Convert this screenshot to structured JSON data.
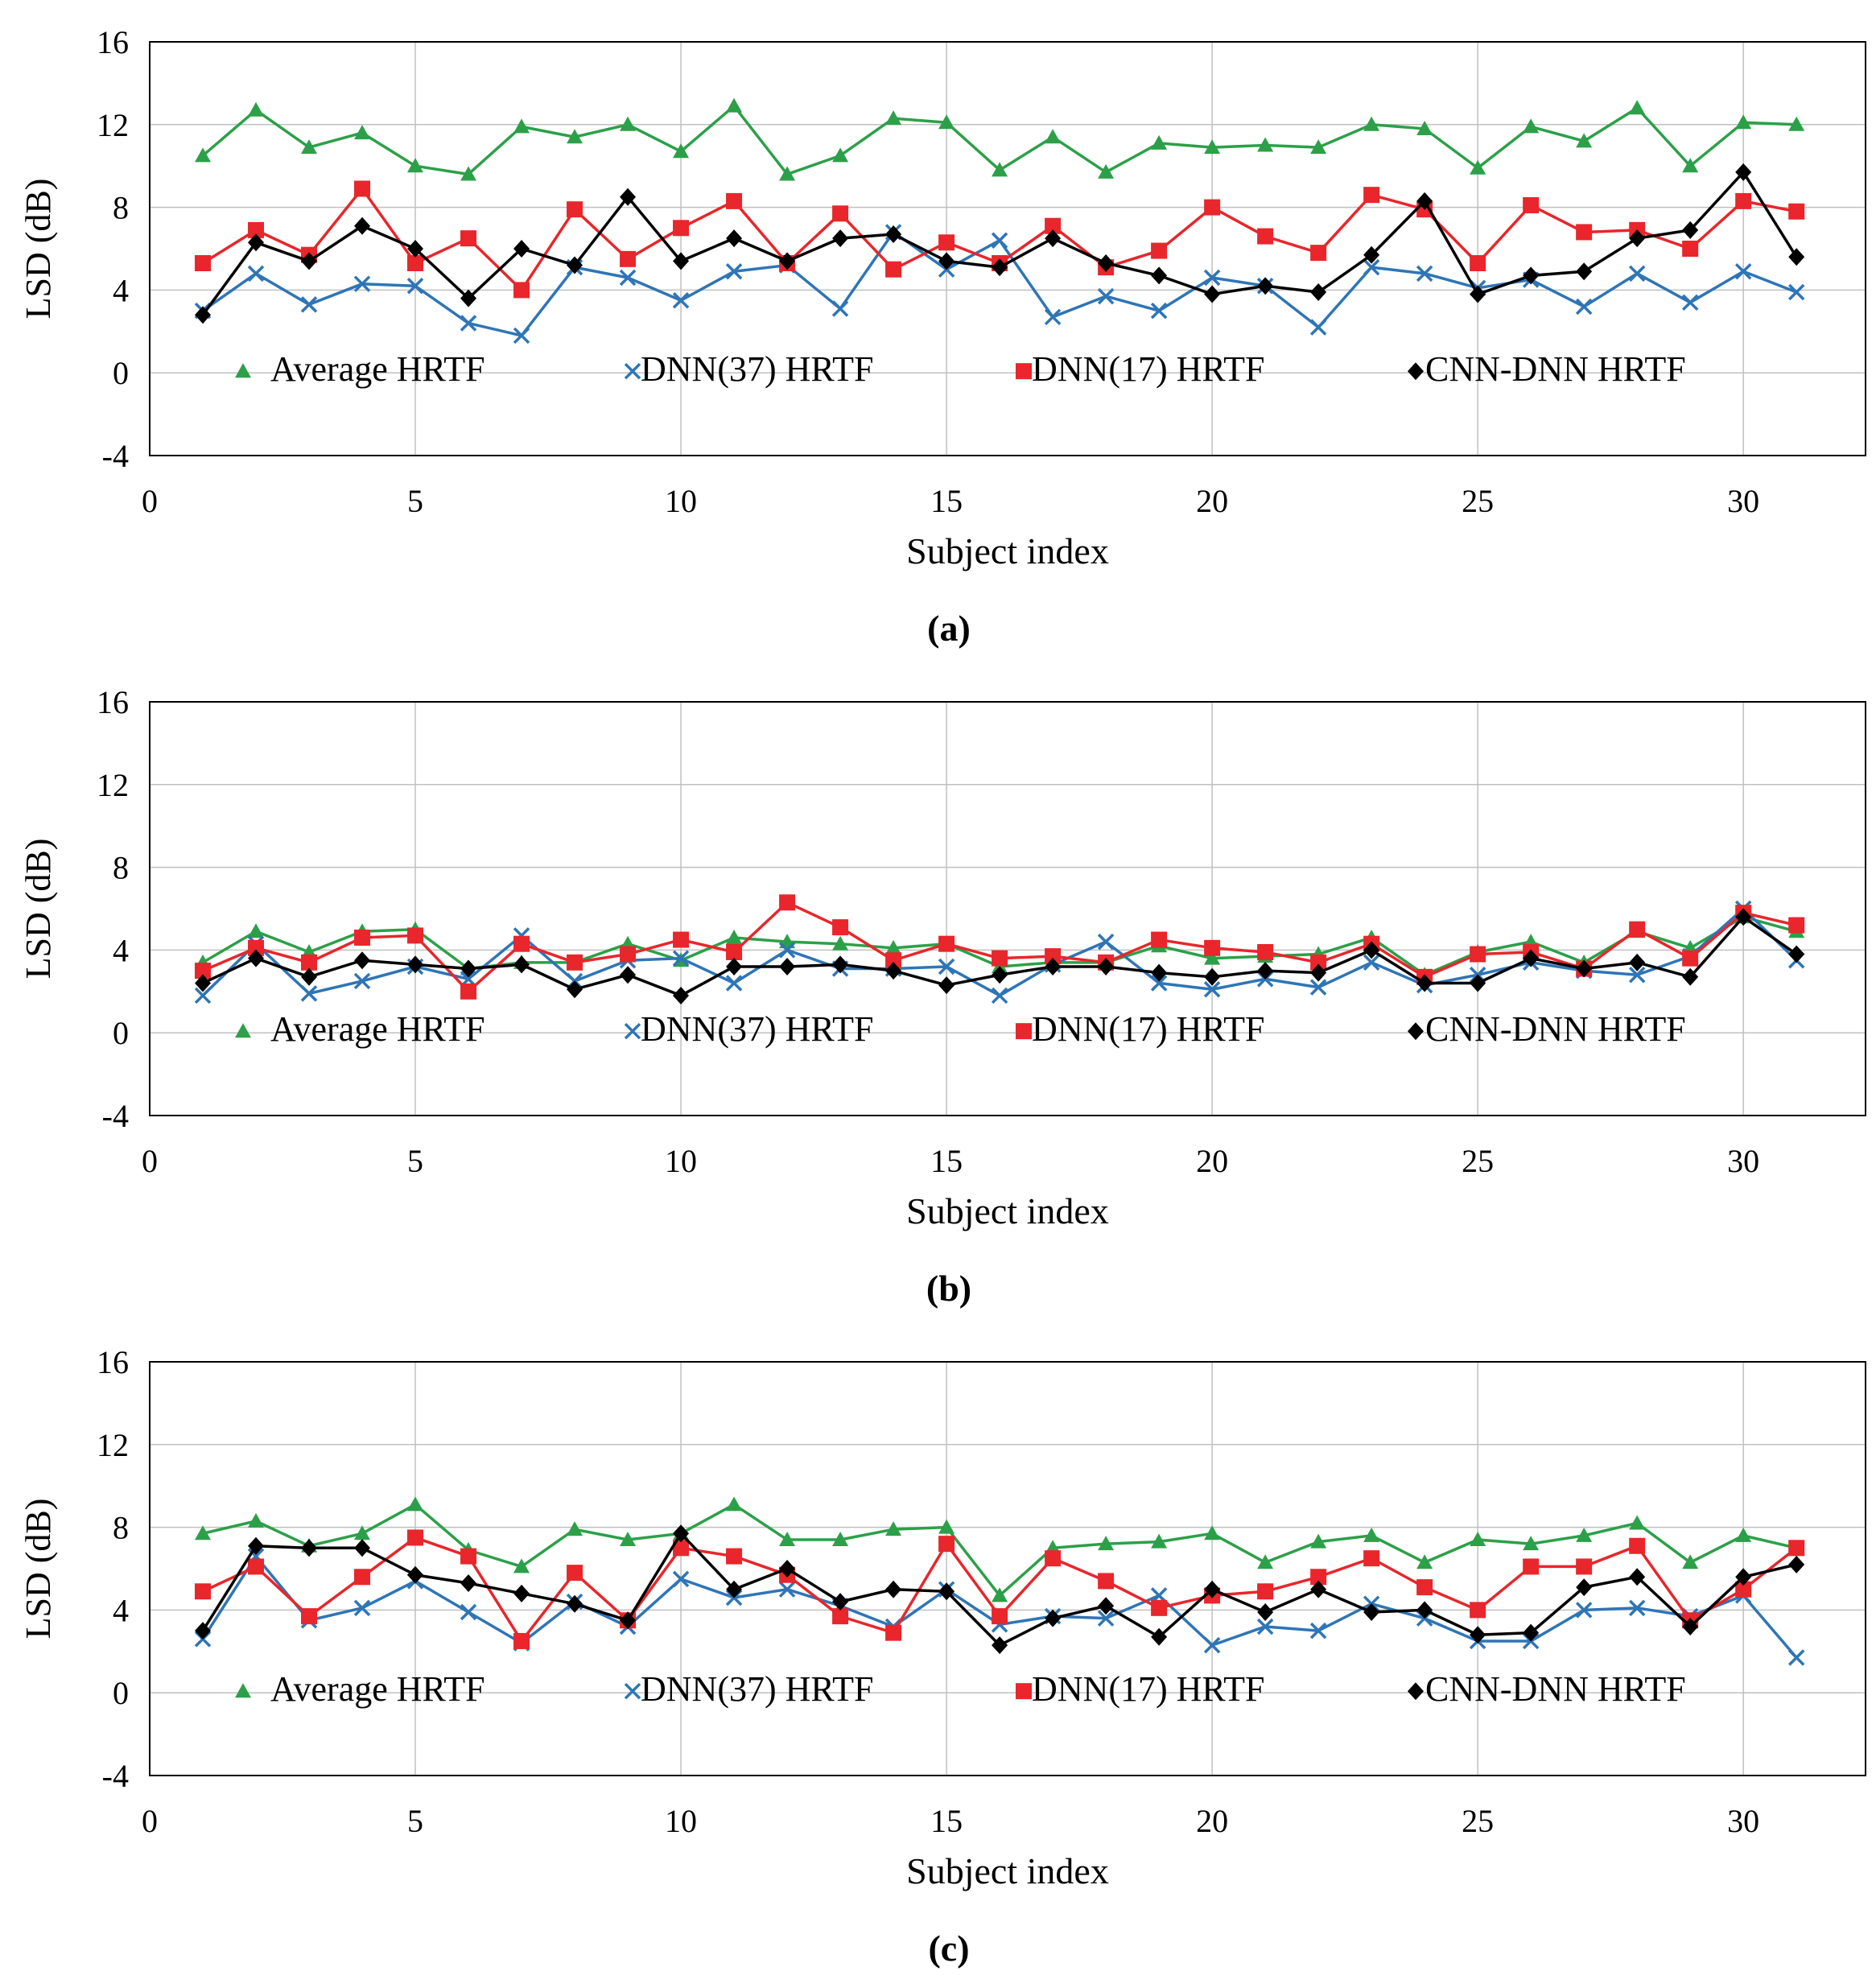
{
  "colors": {
    "average": "#2ca048",
    "dnn37": "#2e75b6",
    "dnn17": "#e8262b",
    "cnndnn": "#000000",
    "grid": "#c0c0c0",
    "frame": "#000000"
  },
  "chart_data": [
    {
      "type": "line",
      "panel_label": "(a)",
      "xlabel": "Subject index",
      "ylabel": "LSD (dB)",
      "xlim": [
        0,
        32.3
      ],
      "ylim": [
        -4,
        16
      ],
      "xticks": [
        0,
        5,
        10,
        15,
        20,
        25,
        30
      ],
      "yticks": [
        -4,
        0,
        4,
        8,
        12,
        16
      ],
      "grid": true,
      "legend_position": "bottom-inside",
      "x": [
        1,
        2,
        3,
        4,
        5,
        6,
        7,
        8,
        9,
        10,
        11,
        12,
        13,
        14,
        15,
        16,
        17,
        18,
        19,
        20,
        21,
        22,
        23,
        24,
        25,
        26,
        27,
        28,
        29,
        30,
        31
      ],
      "series": [
        {
          "key": "average",
          "name": "Average HRTF",
          "marker": "triangle",
          "values": [
            10.5,
            12.7,
            10.9,
            11.6,
            10.0,
            9.6,
            11.9,
            11.4,
            12.0,
            10.7,
            12.9,
            9.6,
            10.5,
            12.3,
            12.1,
            9.8,
            11.4,
            9.7,
            11.1,
            10.9,
            11.0,
            10.9,
            12.0,
            11.8,
            9.9,
            11.9,
            11.2,
            12.8,
            10.0,
            12.1,
            12.0
          ]
        },
        {
          "key": "dnn37",
          "name": "DNN(37) HRTF",
          "marker": "x",
          "values": [
            3.0,
            4.8,
            3.3,
            4.3,
            4.2,
            2.4,
            1.8,
            5.1,
            4.6,
            3.5,
            4.9,
            5.2,
            3.1,
            6.8,
            5.0,
            6.4,
            2.7,
            3.7,
            3.0,
            4.6,
            4.2,
            2.2,
            5.1,
            4.8,
            4.1,
            4.5,
            3.2,
            4.8,
            3.4,
            4.9,
            3.9
          ]
        },
        {
          "key": "dnn17",
          "name": "DNN(17) HRTF",
          "marker": "square",
          "values": [
            5.3,
            6.9,
            5.7,
            8.9,
            5.3,
            6.5,
            4.0,
            7.9,
            5.5,
            7.0,
            8.3,
            5.3,
            7.7,
            5.0,
            6.3,
            5.3,
            7.1,
            5.1,
            5.9,
            8.0,
            6.6,
            5.8,
            8.6,
            7.9,
            5.3,
            8.1,
            6.8,
            6.9,
            6.0,
            8.3,
            7.8
          ]
        },
        {
          "key": "cnndnn",
          "name": "CNN-DNN HRTF",
          "marker": "diamond",
          "values": [
            2.8,
            6.3,
            5.4,
            7.1,
            6.0,
            3.6,
            6.0,
            5.2,
            8.5,
            5.4,
            6.5,
            5.4,
            6.5,
            6.7,
            5.4,
            5.1,
            6.5,
            5.3,
            4.7,
            3.8,
            4.2,
            3.9,
            5.7,
            8.3,
            3.8,
            4.7,
            4.9,
            6.5,
            6.9,
            9.7,
            5.6
          ]
        }
      ]
    },
    {
      "type": "line",
      "panel_label": "(b)",
      "xlabel": "Subject index",
      "ylabel": "LSD (dB)",
      "xlim": [
        0,
        32.3
      ],
      "ylim": [
        -4,
        16
      ],
      "xticks": [
        0,
        5,
        10,
        15,
        20,
        25,
        30
      ],
      "yticks": [
        -4,
        0,
        4,
        8,
        12,
        16
      ],
      "grid": true,
      "legend_position": "bottom-inside",
      "x": [
        1,
        2,
        3,
        4,
        5,
        6,
        7,
        8,
        9,
        10,
        11,
        12,
        13,
        14,
        15,
        16,
        17,
        18,
        19,
        20,
        21,
        22,
        23,
        24,
        25,
        26,
        27,
        28,
        29,
        30,
        31
      ],
      "series": [
        {
          "key": "average",
          "name": "Average HRTF",
          "marker": "triangle",
          "values": [
            3.4,
            4.9,
            3.9,
            4.9,
            5.0,
            3.1,
            3.4,
            3.4,
            4.3,
            3.5,
            4.6,
            4.4,
            4.3,
            4.1,
            4.3,
            3.2,
            3.4,
            3.4,
            4.2,
            3.6,
            3.7,
            3.8,
            4.6,
            2.8,
            3.9,
            4.4,
            3.4,
            4.9,
            4.1,
            5.6,
            4.9
          ]
        },
        {
          "key": "dnn37",
          "name": "DNN(37) HRTF",
          "marker": "x",
          "values": [
            1.8,
            4.3,
            1.9,
            2.5,
            3.2,
            2.6,
            4.7,
            2.5,
            3.5,
            3.6,
            2.4,
            4.0,
            3.1,
            3.1,
            3.2,
            1.8,
            3.3,
            4.4,
            2.4,
            2.1,
            2.6,
            2.2,
            3.4,
            2.3,
            2.8,
            3.4,
            3.0,
            2.8,
            3.7,
            6.0,
            3.5
          ]
        },
        {
          "key": "dnn17",
          "name": "DNN(17) HRTF",
          "marker": "square",
          "values": [
            3.0,
            4.1,
            3.4,
            4.6,
            4.7,
            2.0,
            4.3,
            3.4,
            3.8,
            4.5,
            3.9,
            6.3,
            5.1,
            3.5,
            4.3,
            3.6,
            3.7,
            3.4,
            4.5,
            4.1,
            3.9,
            3.4,
            4.3,
            2.7,
            3.8,
            3.9,
            3.1,
            5.0,
            3.6,
            5.8,
            5.2
          ]
        },
        {
          "key": "cnndnn",
          "name": "CNN-DNN HRTF",
          "marker": "diamond",
          "values": [
            2.4,
            3.6,
            2.7,
            3.5,
            3.3,
            3.1,
            3.3,
            2.1,
            2.8,
            1.8,
            3.2,
            3.2,
            3.3,
            3.0,
            2.3,
            2.8,
            3.2,
            3.2,
            2.9,
            2.7,
            3.0,
            2.9,
            4.0,
            2.4,
            2.4,
            3.6,
            3.1,
            3.4,
            2.7,
            5.6,
            3.8
          ]
        }
      ]
    },
    {
      "type": "line",
      "panel_label": "(c)",
      "xlabel": "Subject index",
      "ylabel": "LSD (dB)",
      "xlim": [
        0,
        32.3
      ],
      "ylim": [
        -4,
        16
      ],
      "xticks": [
        0,
        5,
        10,
        15,
        20,
        25,
        30
      ],
      "yticks": [
        -4,
        0,
        4,
        8,
        12,
        16
      ],
      "grid": true,
      "legend_position": "bottom-inside",
      "x": [
        1,
        2,
        3,
        4,
        5,
        6,
        7,
        8,
        9,
        10,
        11,
        12,
        13,
        14,
        15,
        16,
        17,
        18,
        19,
        20,
        21,
        22,
        23,
        24,
        25,
        26,
        27,
        28,
        29,
        30,
        31
      ],
      "series": [
        {
          "key": "average",
          "name": "Average HRTF",
          "marker": "triangle",
          "values": [
            7.7,
            8.3,
            7.1,
            7.7,
            9.1,
            6.9,
            6.1,
            7.9,
            7.4,
            7.7,
            9.1,
            7.4,
            7.4,
            7.9,
            8.0,
            4.7,
            7.0,
            7.2,
            7.3,
            7.7,
            6.3,
            7.3,
            7.6,
            6.3,
            7.4,
            7.2,
            7.6,
            8.2,
            6.3,
            7.6,
            7.0
          ]
        },
        {
          "key": "dnn37",
          "name": "DNN(37) HRTF",
          "marker": "x",
          "values": [
            2.6,
            6.6,
            3.5,
            4.1,
            5.4,
            3.9,
            2.4,
            4.4,
            3.2,
            5.5,
            4.6,
            5.0,
            4.2,
            3.2,
            5.0,
            3.3,
            3.7,
            3.6,
            4.7,
            2.3,
            3.2,
            3.0,
            4.3,
            3.6,
            2.5,
            2.5,
            4.0,
            4.1,
            3.7,
            4.7,
            1.7
          ]
        },
        {
          "key": "dnn17",
          "name": "DNN(17) HRTF",
          "marker": "square",
          "values": [
            4.9,
            6.1,
            3.7,
            5.6,
            7.5,
            6.6,
            2.5,
            5.8,
            3.5,
            7.0,
            6.6,
            5.7,
            3.7,
            2.9,
            7.2,
            3.7,
            6.5,
            5.4,
            4.1,
            4.7,
            4.9,
            5.6,
            6.5,
            5.1,
            4.0,
            6.1,
            6.1,
            7.1,
            3.5,
            5.0,
            7.0
          ]
        },
        {
          "key": "cnndnn",
          "name": "CNN-DNN HRTF",
          "marker": "diamond",
          "values": [
            3.0,
            7.1,
            7.0,
            7.0,
            5.7,
            5.3,
            4.8,
            4.3,
            3.5,
            7.7,
            5.0,
            6.0,
            4.4,
            5.0,
            4.9,
            2.3,
            3.6,
            4.2,
            2.7,
            5.0,
            3.9,
            5.0,
            3.9,
            4.0,
            2.8,
            2.9,
            5.1,
            5.6,
            3.2,
            5.6,
            6.2
          ]
        }
      ]
    }
  ]
}
